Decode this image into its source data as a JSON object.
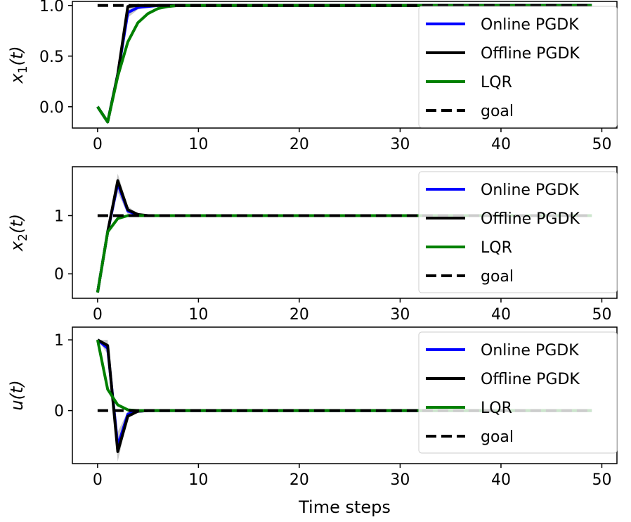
{
  "chart_data": [
    {
      "type": "line",
      "ylabel": "x1(t)",
      "ylabel_main": "x",
      "ylabel_sub": "1",
      "ylabel_tail": "(t)",
      "xlabel": "",
      "xlim": [
        -2.5,
        51.5
      ],
      "ylim": [
        -0.21,
        1.04
      ],
      "xticks": [
        0,
        10,
        20,
        30,
        40,
        50
      ],
      "yticks": [
        0.0,
        0.5,
        1.0
      ],
      "ytick_labels": [
        "0.0",
        "0.5",
        "1.0"
      ],
      "legend_position": "upper right",
      "series": [
        {
          "name": "Online PGDK",
          "color": "#0000ff",
          "style": "solid",
          "x": [
            0,
            1,
            2,
            3,
            4,
            5,
            6,
            7,
            8,
            9,
            10,
            49
          ],
          "y": [
            0.0,
            -0.15,
            0.32,
            0.93,
            0.98,
            0.99,
            1.0,
            1.0,
            1.0,
            1.0,
            1.0,
            1.0
          ],
          "band_lo": [
            0.0,
            -0.15,
            0.3,
            0.88,
            0.96,
            0.99,
            1.0,
            1.0,
            1.0,
            1.0,
            1.0,
            1.0
          ],
          "band_hi": [
            0.0,
            -0.15,
            0.34,
            0.99,
            1.0,
            1.0,
            1.0,
            1.0,
            1.0,
            1.0,
            1.0,
            1.0
          ]
        },
        {
          "name": "Offline PGDK",
          "color": "#000000",
          "style": "solid",
          "x": [
            0,
            1,
            2,
            3,
            4,
            5,
            6,
            49
          ],
          "y": [
            0.0,
            -0.15,
            0.32,
            0.99,
            1.0,
            1.0,
            1.0,
            1.0
          ]
        },
        {
          "name": "LQR",
          "color": "#008000",
          "style": "solid",
          "x": [
            0,
            1,
            2,
            3,
            4,
            5,
            6,
            7,
            8,
            9,
            10,
            49
          ],
          "y": [
            0.0,
            -0.15,
            0.3,
            0.64,
            0.83,
            0.92,
            0.97,
            0.99,
            1.0,
            1.0,
            1.0,
            1.0
          ]
        },
        {
          "name": "goal",
          "color": "#000000",
          "style": "dashed",
          "x": [
            0,
            49
          ],
          "y": [
            1.0,
            1.0
          ]
        }
      ]
    },
    {
      "type": "line",
      "ylabel": "x2(t)",
      "ylabel_main": "x",
      "ylabel_sub": "2",
      "ylabel_tail": "(t)",
      "xlabel": "",
      "xlim": [
        -2.5,
        51.5
      ],
      "ylim": [
        -0.42,
        1.84
      ],
      "xticks": [
        0,
        10,
        20,
        30,
        40,
        50
      ],
      "yticks": [
        0,
        1
      ],
      "ytick_labels": [
        "0",
        "1"
      ],
      "legend_position": "upper right",
      "series": [
        {
          "name": "Online PGDK",
          "color": "#0000ff",
          "style": "solid",
          "x": [
            0,
            1,
            2,
            3,
            4,
            5,
            6,
            49
          ],
          "y": [
            -0.32,
            0.72,
            1.55,
            1.08,
            1.01,
            1.0,
            1.0,
            1.0
          ],
          "band_lo": [
            -0.32,
            0.72,
            1.4,
            1.02,
            0.99,
            1.0,
            1.0,
            1.0
          ],
          "band_hi": [
            -0.32,
            0.72,
            1.72,
            1.16,
            1.03,
            1.0,
            1.0,
            1.0
          ]
        },
        {
          "name": "Offline PGDK",
          "color": "#000000",
          "style": "solid",
          "x": [
            0,
            1,
            2,
            3,
            4,
            5,
            6,
            49
          ],
          "y": [
            -0.32,
            0.72,
            1.6,
            1.1,
            1.02,
            1.0,
            1.0,
            1.0
          ]
        },
        {
          "name": "LQR",
          "color": "#008000",
          "style": "solid",
          "x": [
            0,
            1,
            2,
            3,
            4,
            5,
            6,
            49
          ],
          "y": [
            -0.32,
            0.72,
            0.95,
            1.0,
            1.0,
            1.0,
            1.0,
            1.0
          ]
        },
        {
          "name": "goal",
          "color": "#000000",
          "style": "dashed",
          "x": [
            0,
            49
          ],
          "y": [
            1.0,
            1.0
          ]
        }
      ]
    },
    {
      "type": "line",
      "ylabel": "u(t)",
      "ylabel_main": "u",
      "ylabel_sub": "",
      "ylabel_tail": "(t)",
      "xlabel": "Time steps",
      "xlim": [
        -2.5,
        51.5
      ],
      "ylim": [
        -0.75,
        1.18
      ],
      "xticks": [
        0,
        10,
        20,
        30,
        40,
        50
      ],
      "yticks": [
        0,
        1
      ],
      "ytick_labels": [
        "0",
        "1"
      ],
      "legend_position": "upper right",
      "series": [
        {
          "name": "Online PGDK",
          "color": "#0000ff",
          "style": "solid",
          "x": [
            0,
            1,
            2,
            3,
            4,
            5,
            6,
            49
          ],
          "y": [
            1.0,
            0.88,
            -0.5,
            -0.05,
            -0.01,
            0.0,
            0.0,
            0.0
          ],
          "band_lo": [
            1.0,
            0.8,
            -0.72,
            -0.1,
            -0.02,
            0.0,
            0.0,
            0.0
          ],
          "band_hi": [
            1.0,
            1.0,
            -0.3,
            -0.01,
            0.0,
            0.0,
            0.0,
            0.0
          ]
        },
        {
          "name": "Offline PGDK",
          "color": "#000000",
          "style": "solid",
          "x": [
            0,
            1,
            2,
            3,
            4,
            5,
            6,
            49
          ],
          "y": [
            1.0,
            0.92,
            -0.58,
            -0.08,
            -0.01,
            0.0,
            0.0,
            0.0
          ]
        },
        {
          "name": "LQR",
          "color": "#008000",
          "style": "solid",
          "x": [
            0,
            1,
            2,
            3,
            4,
            5,
            6,
            49
          ],
          "y": [
            1.0,
            0.3,
            0.08,
            0.01,
            0.0,
            0.0,
            0.0,
            0.0
          ]
        },
        {
          "name": "goal",
          "color": "#000000",
          "style": "dashed",
          "x": [
            0,
            49
          ],
          "y": [
            0.0,
            0.0
          ]
        }
      ]
    }
  ]
}
